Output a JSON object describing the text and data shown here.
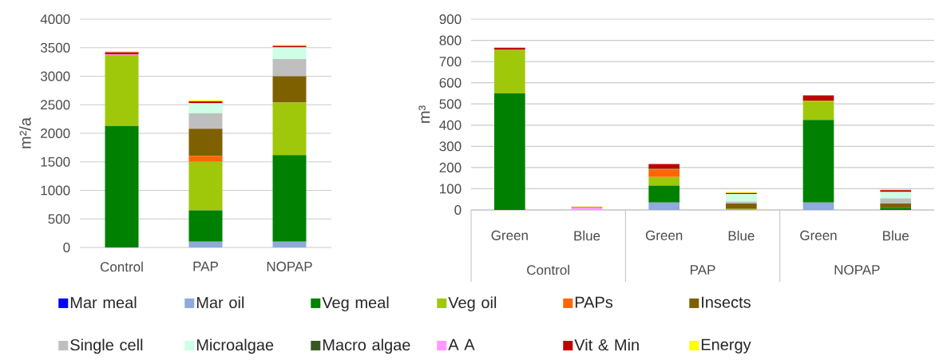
{
  "chart_data": [
    {
      "type": "bar",
      "stacked": true,
      "ylabel": "m²/a",
      "categories": [
        "Control",
        "PAP",
        "NOPAP"
      ],
      "ylim": [
        0,
        4000
      ],
      "yticks": [
        0,
        500,
        1000,
        1500,
        2000,
        2500,
        3000,
        3500,
        4000
      ],
      "grid": "y",
      "legend": "bottom",
      "series": [
        {
          "name": "Mar meal",
          "color": "#0000ff",
          "values": [
            null,
            null,
            null
          ]
        },
        {
          "name": "Mar oil",
          "color": "#8faadc",
          "values": [
            null,
            100,
            100
          ]
        },
        {
          "name": "Veg meal",
          "color": "#008000",
          "values": [
            2130,
            550,
            1520
          ]
        },
        {
          "name": "Veg oil",
          "color": "#a0c80a",
          "values": [
            1240,
            850,
            920
          ]
        },
        {
          "name": "PAPs",
          "color": "#ff6600",
          "values": [
            null,
            100,
            null
          ]
        },
        {
          "name": "Insects",
          "color": "#7f6000",
          "values": [
            null,
            480,
            460
          ]
        },
        {
          "name": "Single cell",
          "color": "#bfbfbf",
          "values": [
            null,
            270,
            300
          ]
        },
        {
          "name": "Microalgae",
          "color": "#ccffe5",
          "values": [
            null,
            170,
            200
          ]
        },
        {
          "name": "Macro algae",
          "color": "#385723",
          "values": [
            null,
            null,
            null
          ]
        },
        {
          "name": "A A",
          "color": "#ff99ff",
          "values": [
            10,
            10,
            10
          ]
        },
        {
          "name": "Vit & Min",
          "color": "#c00000",
          "values": [
            40,
            30,
            20
          ]
        },
        {
          "name": "Energy",
          "color": "#ffff00",
          "values": [
            20,
            20,
            20
          ]
        }
      ]
    },
    {
      "type": "bar",
      "stacked": true,
      "ylabel": "m³",
      "categories": [
        "Green",
        "Blue",
        "Green",
        "Blue",
        "Green",
        "Blue"
      ],
      "annotations": [
        "Control",
        "PAP",
        "NOPAP"
      ],
      "ylim": [
        0,
        900
      ],
      "yticks": [
        0,
        100,
        200,
        300,
        400,
        500,
        600,
        700,
        800,
        900
      ],
      "grid": "y",
      "series": [
        {
          "color": "#0000ff",
          "values": [
            null,
            null,
            null,
            null,
            null,
            null
          ]
        },
        {
          "color": "#8faadc",
          "values": [
            null,
            null,
            35,
            null,
            35,
            null
          ]
        },
        {
          "color": "#008000",
          "values": [
            550,
            null,
            80,
            null,
            390,
            10
          ]
        },
        {
          "color": "#a0c80a",
          "values": [
            205,
            null,
            40,
            5,
            90,
            null
          ]
        },
        {
          "color": "#ff6600",
          "values": [
            null,
            null,
            35,
            null,
            null,
            null
          ]
        },
        {
          "color": "#7f6000",
          "values": [
            null,
            null,
            5,
            25,
            null,
            20
          ]
        },
        {
          "color": "#bfbfbf",
          "values": [
            null,
            null,
            null,
            10,
            null,
            25
          ]
        },
        {
          "color": "#ccffe5",
          "values": [
            null,
            null,
            null,
            35,
            null,
            30
          ]
        },
        {
          "color": "#385723",
          "values": [
            null,
            null,
            null,
            null,
            null,
            null
          ]
        },
        {
          "color": "#ff99ff",
          "values": [
            null,
            10,
            null,
            null,
            null,
            null
          ]
        },
        {
          "color": "#c00000",
          "values": [
            10,
            3,
            22,
            5,
            25,
            8
          ]
        },
        {
          "color": "#ffff00",
          "values": [
            null,
            3,
            null,
            5,
            null,
            5
          ]
        }
      ]
    }
  ]
}
